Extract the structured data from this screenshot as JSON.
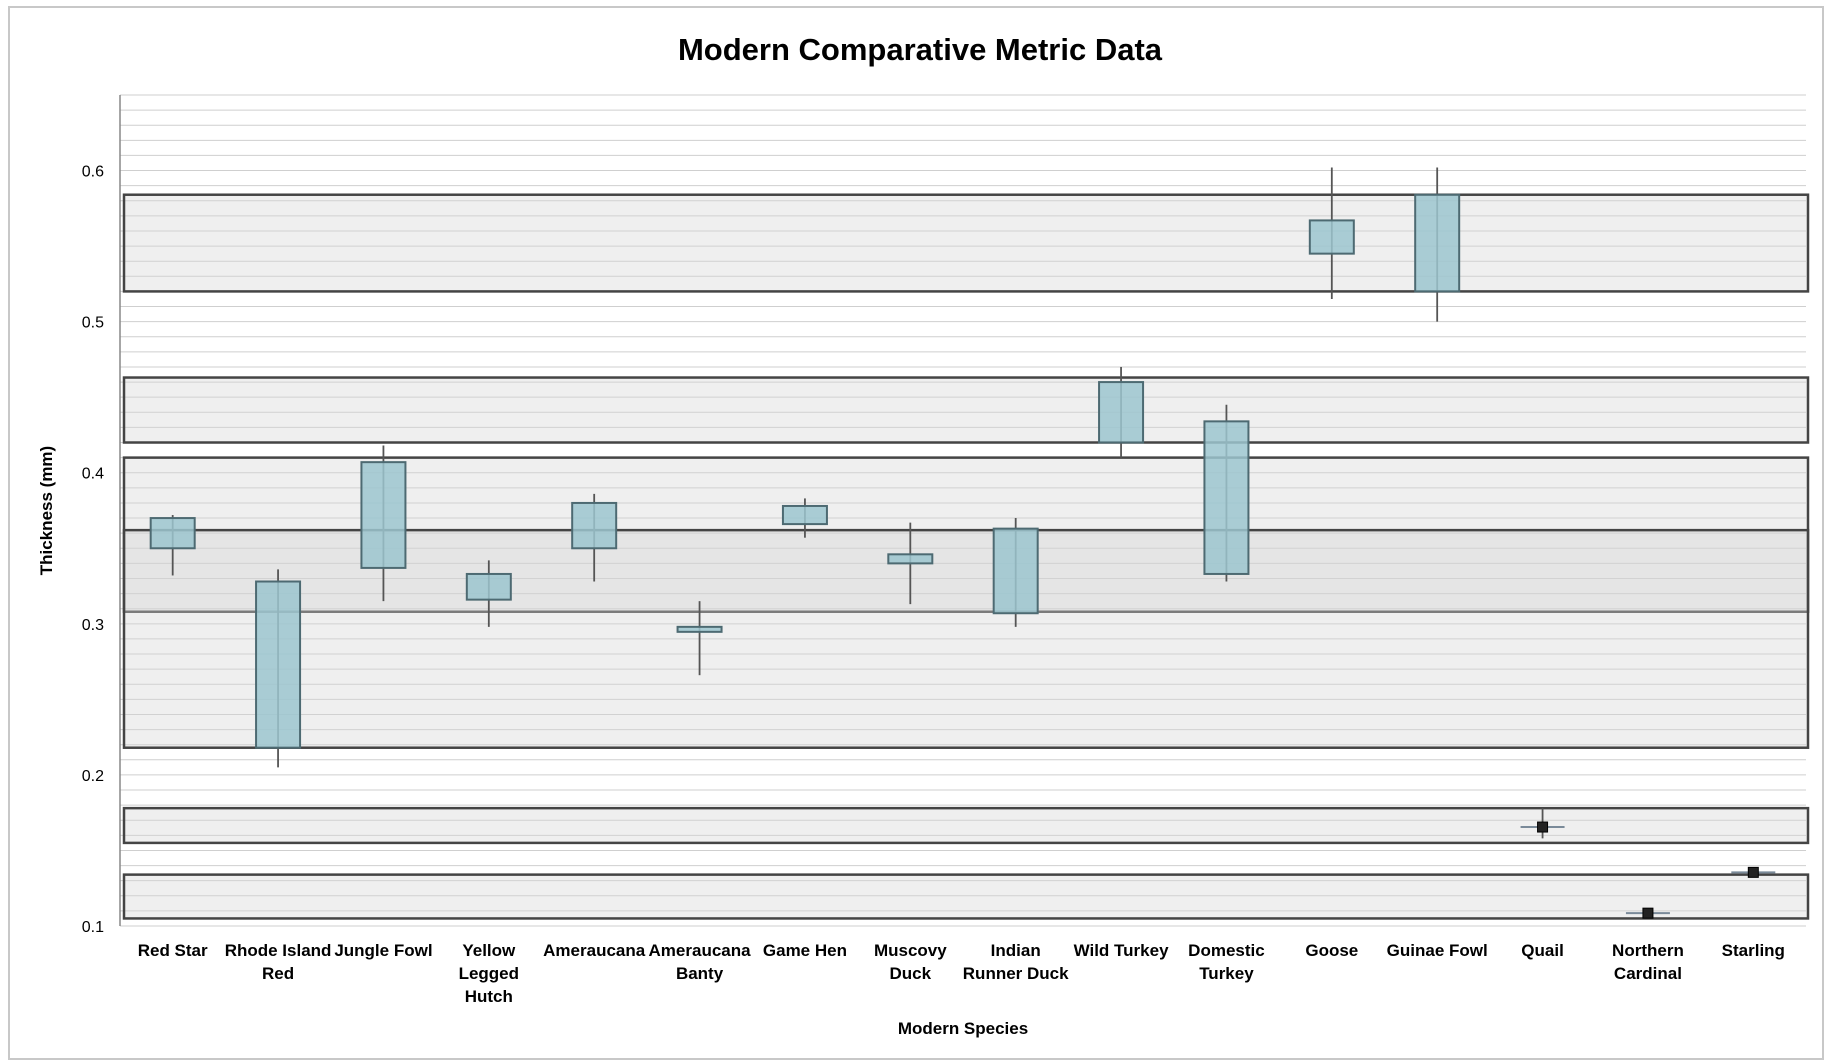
{
  "chart_data": {
    "type": "box",
    "title": "Modern Comparative Metric Data",
    "xlabel": "Modern Species",
    "ylabel": "Thickness (mm)",
    "ylim": [
      0.1,
      0.65
    ],
    "yticks": [
      "0.1",
      "0.2",
      "0.3",
      "0.4",
      "0.5",
      "0.6"
    ],
    "grid": true,
    "legend": "none",
    "colors": {
      "box_fill": "#9cc5cf",
      "box_stroke": "#4d6a72",
      "band_fill": "#d6d6d6",
      "band_stroke": "#444444",
      "grid": "#cfcfcf"
    },
    "categories": [
      {
        "label": [
          "Red Star"
        ],
        "min": 0.332,
        "q1": 0.35,
        "q3": 0.37,
        "max": 0.372
      },
      {
        "label": [
          "Rhode Island",
          "Red"
        ],
        "min": 0.205,
        "q1": 0.218,
        "q3": 0.328,
        "max": 0.336
      },
      {
        "label": [
          "Jungle Fowl"
        ],
        "min": 0.315,
        "q1": 0.337,
        "q3": 0.407,
        "max": 0.418
      },
      {
        "label": [
          "Yellow",
          "Legged",
          "Hutch"
        ],
        "min": 0.298,
        "q1": 0.316,
        "q3": 0.333,
        "max": 0.342
      },
      {
        "label": [
          "Ameraucana"
        ],
        "min": 0.328,
        "q1": 0.35,
        "q3": 0.38,
        "max": 0.386
      },
      {
        "label": [
          "Ameraucana",
          "Banty"
        ],
        "min": 0.266,
        "q1": 0.295,
        "q3": 0.298,
        "max": 0.315
      },
      {
        "label": [
          "Game Hen"
        ],
        "min": 0.357,
        "q1": 0.366,
        "q3": 0.378,
        "max": 0.383
      },
      {
        "label": [
          "Muscovy",
          "Duck"
        ],
        "min": 0.313,
        "q1": 0.34,
        "q3": 0.346,
        "max": 0.367
      },
      {
        "label": [
          "Indian",
          "Runner Duck"
        ],
        "min": 0.298,
        "q1": 0.307,
        "q3": 0.363,
        "max": 0.37
      },
      {
        "label": [
          "Wild Turkey"
        ],
        "min": 0.41,
        "q1": 0.42,
        "q3": 0.46,
        "max": 0.47
      },
      {
        "label": [
          "Domestic",
          "Turkey"
        ],
        "min": 0.328,
        "q1": 0.333,
        "q3": 0.434,
        "max": 0.445
      },
      {
        "label": [
          "Goose"
        ],
        "min": 0.515,
        "q1": 0.545,
        "q3": 0.567,
        "max": 0.602
      },
      {
        "label": [
          "Guinae Fowl"
        ],
        "min": 0.5,
        "q1": 0.52,
        "q3": 0.584,
        "max": 0.602
      },
      {
        "label": [
          "Quail"
        ],
        "min": 0.158,
        "q1": 0.163,
        "q3": 0.168,
        "max": 0.178
      },
      {
        "label": [
          "Northern",
          "Cardinal"
        ],
        "min": 0.106,
        "q1": 0.106,
        "q3": 0.111,
        "max": 0.111
      },
      {
        "label": [
          "Starling"
        ],
        "min": 0.133,
        "q1": 0.133,
        "q3": 0.138,
        "max": 0.138
      }
    ],
    "bands": [
      {
        "bottom": 0.52,
        "top": 0.584
      },
      {
        "bottom": 0.42,
        "top": 0.463
      },
      {
        "bottom": 0.308,
        "top": 0.41
      },
      {
        "bottom": 0.218,
        "top": 0.362
      },
      {
        "bottom": 0.155,
        "top": 0.178
      },
      {
        "bottom": 0.105,
        "top": 0.134
      }
    ]
  }
}
